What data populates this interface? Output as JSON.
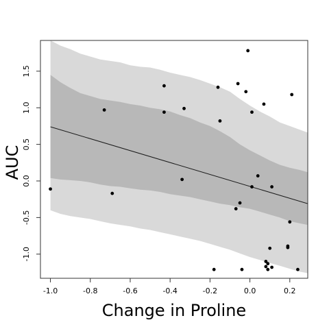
{
  "chart_data": {
    "type": "scatter",
    "title": "",
    "xlabel": "Change in Proline",
    "ylabel": "AUC",
    "xlim": [
      -1.05,
      0.29
    ],
    "ylim": [
      -1.33,
      1.92
    ],
    "xticks": [
      -1.0,
      -0.8,
      -0.6,
      -0.4,
      -0.2,
      0.0,
      0.2
    ],
    "xtick_labels": [
      "-1.0",
      "-0.8",
      "-0.6",
      "-0.4",
      "-0.2",
      "0.0",
      "0.2"
    ],
    "yticks": [
      -1.0,
      -0.5,
      0.0,
      0.5,
      1.0,
      1.5
    ],
    "ytick_labels": [
      "-1.0",
      "-0.5",
      "0.0",
      "0.5",
      "1.0",
      "1.5"
    ],
    "grid": false,
    "colors": {
      "outer_band": "#d9d9d9",
      "inner_band": "#b8b8b8",
      "line": "#1a1a1a",
      "points": "#000000",
      "frame": "#333333"
    },
    "regression_line": {
      "x": [
        -1.0,
        0.29
      ],
      "y": [
        0.74,
        -0.31
      ]
    },
    "inner_band": {
      "x": [
        -1.0,
        -0.95,
        -0.9,
        -0.85,
        -0.8,
        -0.75,
        -0.7,
        -0.65,
        -0.6,
        -0.55,
        -0.5,
        -0.45,
        -0.4,
        -0.35,
        -0.3,
        -0.25,
        -0.2,
        -0.15,
        -0.1,
        -0.05,
        0.0,
        0.05,
        0.1,
        0.15,
        0.2,
        0.25,
        0.29
      ],
      "upper": [
        1.45,
        1.35,
        1.27,
        1.2,
        1.16,
        1.12,
        1.1,
        1.08,
        1.05,
        1.03,
        1.0,
        0.98,
        0.95,
        0.9,
        0.86,
        0.8,
        0.75,
        0.68,
        0.6,
        0.5,
        0.42,
        0.35,
        0.28,
        0.22,
        0.18,
        0.15,
        0.12
      ],
      "lower": [
        0.04,
        0.02,
        0.01,
        0.0,
        -0.02,
        -0.05,
        -0.07,
        -0.08,
        -0.1,
        -0.12,
        -0.13,
        -0.15,
        -0.18,
        -0.2,
        -0.22,
        -0.25,
        -0.28,
        -0.31,
        -0.33,
        -0.36,
        -0.38,
        -0.42,
        -0.46,
        -0.5,
        -0.55,
        -0.58,
        -0.6
      ]
    },
    "outer_band": {
      "x": [
        -1.0,
        -0.95,
        -0.9,
        -0.85,
        -0.8,
        -0.75,
        -0.7,
        -0.65,
        -0.6,
        -0.55,
        -0.5,
        -0.45,
        -0.4,
        -0.35,
        -0.3,
        -0.25,
        -0.2,
        -0.15,
        -0.1,
        -0.05,
        0.0,
        0.05,
        0.1,
        0.15,
        0.2,
        0.25,
        0.29
      ],
      "upper": [
        1.92,
        1.85,
        1.8,
        1.74,
        1.7,
        1.66,
        1.64,
        1.62,
        1.58,
        1.56,
        1.55,
        1.52,
        1.48,
        1.45,
        1.42,
        1.38,
        1.33,
        1.28,
        1.22,
        1.12,
        1.03,
        0.95,
        0.88,
        0.8,
        0.75,
        0.7,
        0.66
      ],
      "lower": [
        -0.4,
        -0.45,
        -0.48,
        -0.5,
        -0.52,
        -0.55,
        -0.58,
        -0.6,
        -0.62,
        -0.65,
        -0.67,
        -0.7,
        -0.73,
        -0.76,
        -0.79,
        -0.82,
        -0.86,
        -0.9,
        -0.94,
        -0.99,
        -1.04,
        -1.08,
        -1.12,
        -1.16,
        -1.2,
        -1.24,
        -1.26
      ]
    },
    "points": [
      {
        "x": -1.0,
        "y": -0.11
      },
      {
        "x": -0.73,
        "y": 0.97
      },
      {
        "x": -0.69,
        "y": -0.17
      },
      {
        "x": -0.43,
        "y": 1.3
      },
      {
        "x": -0.43,
        "y": 0.94
      },
      {
        "x": -0.34,
        "y": 0.02
      },
      {
        "x": -0.33,
        "y": 0.99
      },
      {
        "x": -0.18,
        "y": -1.21
      },
      {
        "x": -0.16,
        "y": 1.28
      },
      {
        "x": -0.15,
        "y": 0.82
      },
      {
        "x": -0.07,
        "y": -0.38
      },
      {
        "x": -0.06,
        "y": 1.33
      },
      {
        "x": -0.05,
        "y": -0.3
      },
      {
        "x": -0.04,
        "y": -1.21
      },
      {
        "x": -0.02,
        "y": 1.22
      },
      {
        "x": -0.01,
        "y": 1.78
      },
      {
        "x": 0.01,
        "y": 0.94
      },
      {
        "x": 0.01,
        "y": -0.08
      },
      {
        "x": 0.04,
        "y": 0.07
      },
      {
        "x": 0.07,
        "y": 1.05
      },
      {
        "x": 0.08,
        "y": -1.1
      },
      {
        "x": 0.08,
        "y": -1.17
      },
      {
        "x": 0.09,
        "y": -1.13
      },
      {
        "x": 0.09,
        "y": -1.21
      },
      {
        "x": 0.1,
        "y": -0.92
      },
      {
        "x": 0.11,
        "y": -0.08
      },
      {
        "x": 0.11,
        "y": -1.18
      },
      {
        "x": 0.19,
        "y": -0.89
      },
      {
        "x": 0.19,
        "y": -0.91
      },
      {
        "x": 0.2,
        "y": -0.56
      },
      {
        "x": 0.21,
        "y": 1.18
      },
      {
        "x": 0.24,
        "y": -1.21
      }
    ]
  }
}
